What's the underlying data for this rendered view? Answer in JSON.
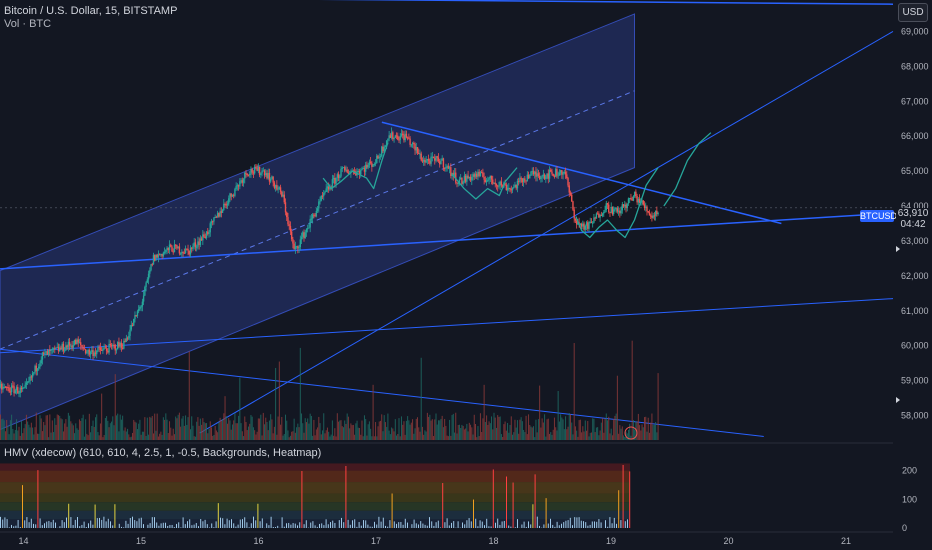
{
  "header": {
    "symbol_line": "Bitcoin / U.S. Dollar, 15, BITSTAMP",
    "volume_line": "Vol · BTC",
    "currency": "USD"
  },
  "price_tag": {
    "symbol": "BTCUSD",
    "price": "63,910",
    "countdown": "04:42"
  },
  "indicator": {
    "title": "HMV (xdecow) (610, 610, 4, 2.5, 1, -0.5, Backgrounds, Heatmap)"
  },
  "colors": {
    "bg": "#131722",
    "up": "#26a69a",
    "down": "#ef5350",
    "trendline": "#2962ff",
    "channel_fill": "#2c3d8f",
    "projection": "#26a69a",
    "axis_text": "#b2b5be"
  },
  "chart_data": [
    {
      "type": "candlestick",
      "title": "Bitcoin / U.S. Dollar, 15, BITSTAMP",
      "x_ticks": [
        "14",
        "15",
        "16",
        "17",
        "18",
        "19",
        "20",
        "21"
      ],
      "y_ticks": [
        "58,000",
        "59,000",
        "60,000",
        "61,000",
        "62,000",
        "63,000",
        "64,000",
        "65,000",
        "66,000",
        "67,000",
        "68,000",
        "69,000"
      ],
      "ylim": [
        57300,
        69900
      ],
      "xlim": [
        13.8,
        21.4
      ],
      "price_path": [
        [
          13.8,
          58800
        ],
        [
          14.0,
          58700
        ],
        [
          14.05,
          59000
        ],
        [
          14.15,
          59700
        ],
        [
          14.3,
          59900
        ],
        [
          14.45,
          60100
        ],
        [
          14.55,
          59800
        ],
        [
          14.7,
          59900
        ],
        [
          14.85,
          60050
        ],
        [
          15.0,
          61200
        ],
        [
          15.1,
          62500
        ],
        [
          15.25,
          62800
        ],
        [
          15.4,
          62700
        ],
        [
          15.55,
          63200
        ],
        [
          15.7,
          64000
        ],
        [
          15.9,
          65000
        ],
        [
          16.05,
          65000
        ],
        [
          16.2,
          64300
        ],
        [
          16.3,
          62700
        ],
        [
          16.4,
          63300
        ],
        [
          16.55,
          64300
        ],
        [
          16.7,
          65000
        ],
        [
          16.85,
          65000
        ],
        [
          17.0,
          65300
        ],
        [
          17.1,
          66000
        ],
        [
          17.25,
          66000
        ],
        [
          17.4,
          65300
        ],
        [
          17.55,
          65300
        ],
        [
          17.7,
          64700
        ],
        [
          17.85,
          64900
        ],
        [
          18.0,
          64700
        ],
        [
          18.15,
          64500
        ],
        [
          18.3,
          64900
        ],
        [
          18.45,
          64900
        ],
        [
          18.6,
          65000
        ],
        [
          18.7,
          63500
        ],
        [
          18.8,
          63400
        ],
        [
          18.95,
          64000
        ],
        [
          19.05,
          63800
        ],
        [
          19.2,
          64300
        ],
        [
          19.3,
          63900
        ],
        [
          19.35,
          63700
        ],
        [
          19.4,
          63910
        ]
      ],
      "volume_scale_max": 8000
    },
    {
      "type": "heatmap",
      "title": "HMV (xdecow) (610, 610, 4, 2.5, 1, -0.5, Backgrounds, Heatmap)",
      "y_ticks": [
        "0",
        "100",
        "200"
      ],
      "ylim": [
        0,
        230
      ]
    }
  ]
}
